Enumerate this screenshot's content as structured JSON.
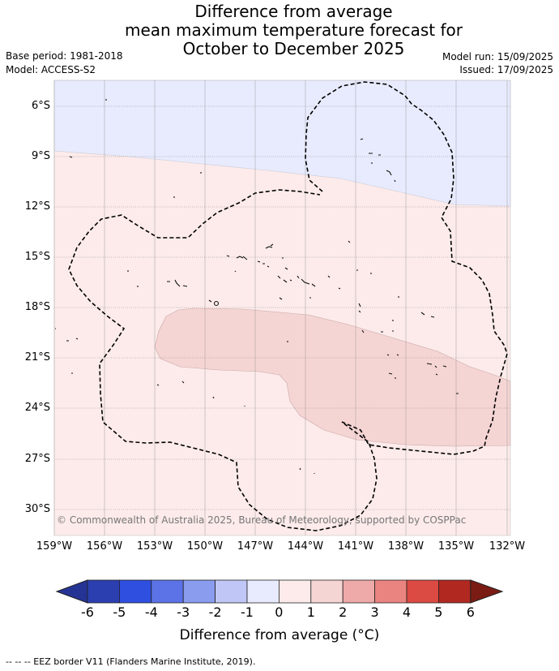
{
  "title": {
    "line1": "Difference from average",
    "line2": "mean maximum temperature forecast for",
    "line3": "October to December 2025"
  },
  "meta": {
    "base_period": "Base period: 1981-2018",
    "model": "Model: ACCESS-S2",
    "model_run": "Model run: 15/09/2025",
    "issued": "Issued: 17/09/2025"
  },
  "credit": "© Commonwealth of Australia 2025, Bureau of Meteorology, supported by COSPPac",
  "axes": {
    "lat_labels": [
      "6°S",
      "9°S",
      "12°S",
      "15°S",
      "18°S",
      "21°S",
      "24°S",
      "27°S",
      "30°S"
    ],
    "lon_labels": [
      "159°W",
      "156°W",
      "153°W",
      "150°W",
      "147°W",
      "144°W",
      "141°W",
      "138°W",
      "135°W",
      "132°W"
    ]
  },
  "colorbar": {
    "ticks": [
      "-6",
      "-5",
      "-4",
      "-3",
      "-2",
      "-1",
      "0",
      "1",
      "2",
      "3",
      "4",
      "5",
      "6"
    ],
    "colors": [
      "#253494",
      "#2c3fb0",
      "#2f4fe0",
      "#5b73e6",
      "#8a9cee",
      "#c0c7f6",
      "#e8ebfd",
      "#fcebea",
      "#f5d5d4",
      "#eeaaa8",
      "#e98480",
      "#db4a43",
      "#b02820",
      "#7a1c14"
    ],
    "label": "Difference from average (°C)"
  },
  "footer": "--  --  -- EEZ border V11 (Flanders Marine Institute, 2019)."
}
